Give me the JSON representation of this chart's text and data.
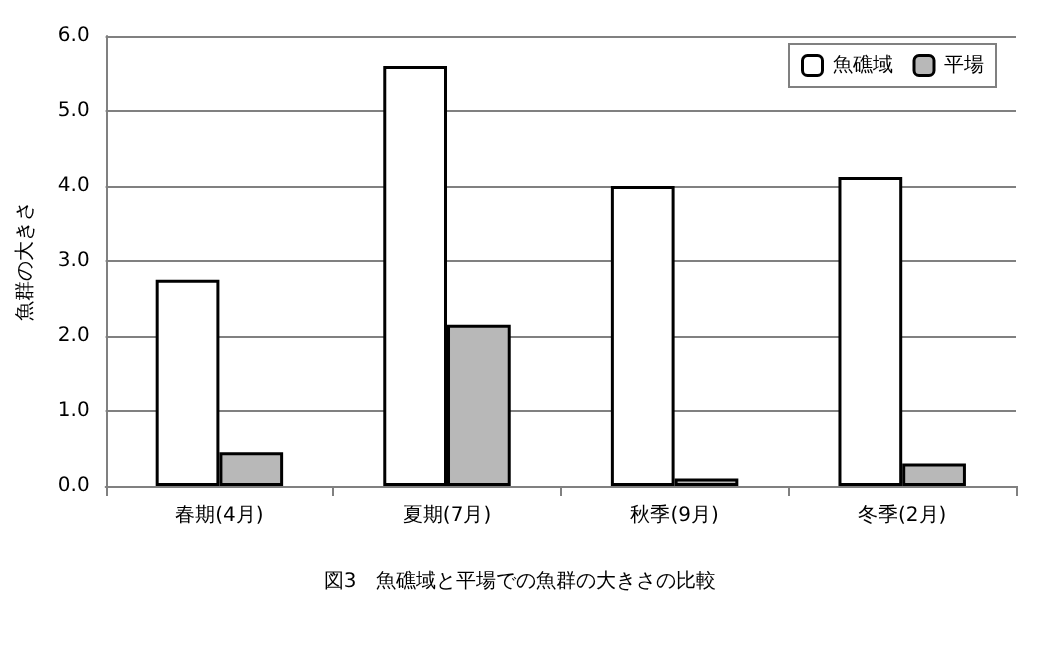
{
  "chart_data": {
    "type": "bar",
    "title": "図3　魚礁域と平場での魚群の大きさの比較",
    "ylabel": "魚群の大きさ",
    "categories": [
      "春期(4月)",
      "夏期(7月)",
      "秋季(9月)",
      "冬季(2月)"
    ],
    "series": [
      {
        "name": "魚礁域",
        "color": "#ffffff",
        "values": [
          2.75,
          5.6,
          4.0,
          4.12
        ]
      },
      {
        "name": "平場",
        "color": "#b8b8b8",
        "values": [
          0.45,
          2.15,
          0.1,
          0.3
        ]
      }
    ],
    "ylim": [
      0,
      6
    ],
    "yticks": [
      {
        "value": 0,
        "label": "0.0"
      },
      {
        "value": 1,
        "label": "1.0"
      },
      {
        "value": 2,
        "label": "2.0"
      },
      {
        "value": 3,
        "label": "3.0"
      },
      {
        "value": 4,
        "label": "4.0"
      },
      {
        "value": 5,
        "label": "5.0"
      },
      {
        "value": 6,
        "label": "6.0"
      }
    ],
    "grid": "y",
    "legend": "top right"
  }
}
